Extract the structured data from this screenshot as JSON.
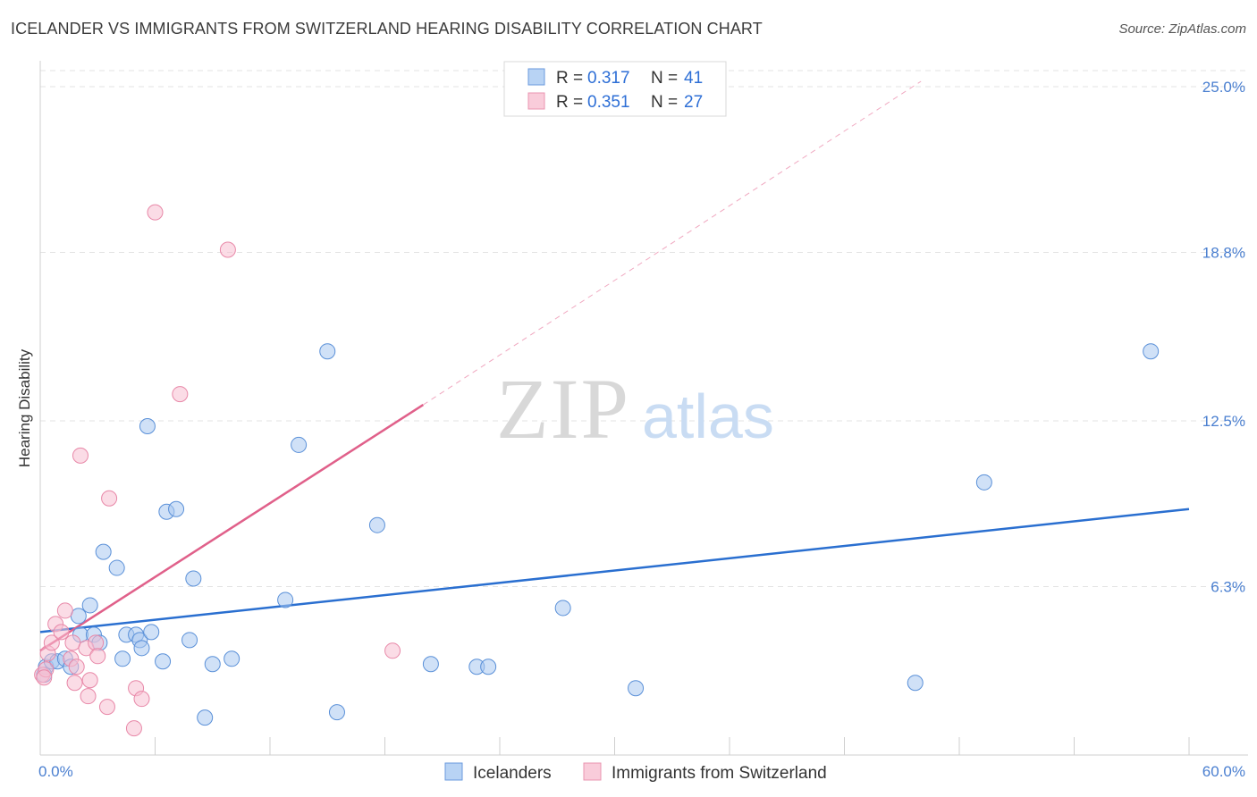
{
  "title": "ICELANDER VS IMMIGRANTS FROM SWITZERLAND HEARING DISABILITY CORRELATION CHART",
  "source": "Source: ZipAtlas.com",
  "watermark": {
    "zip": "ZIP",
    "atlas": "atlas"
  },
  "chart_data": {
    "type": "scatter",
    "ylabel": "Hearing Disability",
    "xlim": [
      0,
      60
    ],
    "ylim": [
      0,
      25
    ],
    "x_ticks": [
      "0.0%",
      "60.0%"
    ],
    "y_ticks": [
      {
        "value": 6.3,
        "label": "6.3%"
      },
      {
        "value": 12.5,
        "label": "12.5%"
      },
      {
        "value": 18.8,
        "label": "18.8%"
      },
      {
        "value": 25.0,
        "label": "25.0%"
      }
    ],
    "legend": [
      {
        "r_label": "R =",
        "r": "0.317",
        "n_label": "N =",
        "n": "41"
      },
      {
        "r_label": "R =",
        "r": "0.351",
        "n_label": "N =",
        "n": "27"
      }
    ],
    "series": [
      {
        "name": "Icelanders",
        "color": "#a9c8f0",
        "stroke": "#5a90d8",
        "line_color": "#2a6fd0",
        "trend": {
          "x0": 0,
          "y0": 4.6,
          "x1": 60,
          "y1": 9.2
        },
        "points": [
          [
            0.3,
            3.3
          ],
          [
            0.6,
            3.5
          ],
          [
            0.9,
            3.5
          ],
          [
            1.3,
            3.6
          ],
          [
            1.6,
            3.3
          ],
          [
            2.0,
            5.2
          ],
          [
            2.1,
            4.5
          ],
          [
            2.6,
            5.6
          ],
          [
            2.8,
            4.5
          ],
          [
            3.1,
            4.2
          ],
          [
            3.3,
            7.6
          ],
          [
            4.0,
            7.0
          ],
          [
            4.3,
            3.6
          ],
          [
            4.5,
            4.5
          ],
          [
            5.0,
            4.5
          ],
          [
            5.2,
            4.3
          ],
          [
            5.3,
            4.0
          ],
          [
            5.6,
            12.3
          ],
          [
            5.8,
            4.6
          ],
          [
            6.4,
            3.5
          ],
          [
            6.6,
            9.1
          ],
          [
            7.1,
            9.2
          ],
          [
            7.8,
            4.3
          ],
          [
            8.0,
            6.6
          ],
          [
            8.6,
            1.4
          ],
          [
            9.0,
            3.4
          ],
          [
            10.0,
            3.6
          ],
          [
            12.8,
            5.8
          ],
          [
            13.5,
            11.6
          ],
          [
            15.0,
            15.1
          ],
          [
            15.5,
            1.6
          ],
          [
            17.6,
            8.6
          ],
          [
            20.4,
            3.4
          ],
          [
            22.8,
            3.3
          ],
          [
            23.4,
            3.3
          ],
          [
            27.3,
            5.5
          ],
          [
            31.1,
            2.5
          ],
          [
            45.7,
            2.7
          ],
          [
            49.3,
            10.2
          ],
          [
            58.0,
            15.1
          ],
          [
            0.2,
            3.0
          ]
        ]
      },
      {
        "name": "Immigrants from Switzerland",
        "color": "#f8c0d2",
        "stroke": "#e888a8",
        "line_color": "#e0608a",
        "trend": {
          "x0": 0,
          "y0": 3.9,
          "x1": 20,
          "y1": 13.1
        },
        "trend_ext": {
          "x0": 20,
          "y0": 13.1,
          "x1": 46,
          "y1": 25.2
        },
        "points": [
          [
            0.1,
            3.0
          ],
          [
            0.3,
            3.2
          ],
          [
            0.4,
            3.8
          ],
          [
            0.6,
            4.2
          ],
          [
            0.8,
            4.9
          ],
          [
            1.1,
            4.6
          ],
          [
            1.3,
            5.4
          ],
          [
            1.6,
            3.6
          ],
          [
            1.7,
            4.2
          ],
          [
            1.8,
            2.7
          ],
          [
            1.9,
            3.3
          ],
          [
            2.1,
            11.2
          ],
          [
            2.4,
            4.0
          ],
          [
            2.5,
            2.2
          ],
          [
            2.6,
            2.8
          ],
          [
            2.9,
            4.2
          ],
          [
            3.0,
            3.7
          ],
          [
            3.5,
            1.8
          ],
          [
            3.6,
            9.6
          ],
          [
            4.9,
            1.0
          ],
          [
            5.0,
            2.5
          ],
          [
            5.3,
            2.1
          ],
          [
            6.0,
            20.3
          ],
          [
            7.3,
            13.5
          ],
          [
            9.8,
            18.9
          ],
          [
            18.4,
            3.9
          ],
          [
            0.2,
            2.9
          ]
        ]
      }
    ]
  }
}
